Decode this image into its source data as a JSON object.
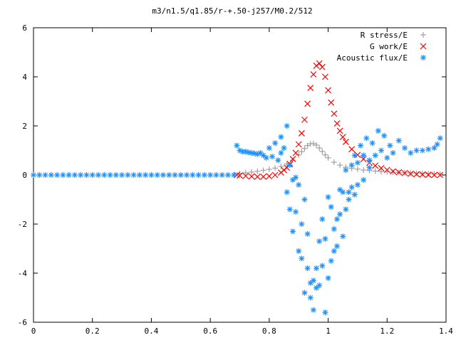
{
  "chart_data": {
    "type": "scatter",
    "title": "m3/n1.5/q1.85/r-+.50-j257/M0.2/512",
    "xlabel": "",
    "ylabel": "",
    "xlim": [
      0,
      1.4
    ],
    "ylim": [
      -6,
      6
    ],
    "x_ticks": [
      0,
      0.2,
      0.4,
      0.6,
      0.8,
      1,
      1.2,
      1.4
    ],
    "x_tick_labels": [
      "0",
      "0.2",
      "0.4",
      "0.6",
      "0.8",
      "1",
      "1.2",
      "1.4"
    ],
    "y_ticks": [
      -6,
      -4,
      -2,
      0,
      2,
      4,
      6
    ],
    "y_tick_labels": [
      "-6",
      "-4",
      "-2",
      "0",
      "2",
      "4",
      "6"
    ],
    "grid": false,
    "legend_position": "top-right",
    "series": [
      {
        "name": "R stress/E",
        "marker": "plus",
        "color": "#a0a0a0",
        "x": [
          0.7,
          0.72,
          0.74,
          0.76,
          0.78,
          0.8,
          0.82,
          0.84,
          0.86,
          0.88,
          0.9,
          0.91,
          0.92,
          0.93,
          0.94,
          0.95,
          0.96,
          0.97,
          0.98,
          0.99,
          1.0,
          1.02,
          1.04,
          1.06,
          1.08,
          1.1,
          1.12,
          1.14,
          1.16,
          1.18,
          1.2,
          1.22,
          1.24,
          1.26,
          1.28,
          1.3,
          1.32,
          1.34,
          1.36,
          1.38
        ],
        "y": [
          0.06,
          0.09,
          0.12,
          0.15,
          0.19,
          0.23,
          0.28,
          0.35,
          0.45,
          0.6,
          0.82,
          0.95,
          1.08,
          1.2,
          1.27,
          1.28,
          1.22,
          1.1,
          0.96,
          0.82,
          0.7,
          0.52,
          0.4,
          0.32,
          0.27,
          0.24,
          0.2,
          0.18,
          0.16,
          0.14,
          0.13,
          0.11,
          0.1,
          0.09,
          0.08,
          0.07,
          0.06,
          0.05,
          0.04,
          0.03
        ]
      },
      {
        "name": "G work/E",
        "marker": "cross",
        "color": "#ff0000",
        "x": [
          0.69,
          0.7,
          0.72,
          0.74,
          0.76,
          0.78,
          0.8,
          0.82,
          0.84,
          0.85,
          0.86,
          0.87,
          0.88,
          0.89,
          0.9,
          0.91,
          0.92,
          0.93,
          0.94,
          0.95,
          0.96,
          0.97,
          0.98,
          0.99,
          1.0,
          1.01,
          1.02,
          1.03,
          1.04,
          1.05,
          1.06,
          1.08,
          1.1,
          1.12,
          1.14,
          1.16,
          1.18,
          1.2,
          1.22,
          1.24,
          1.26,
          1.28,
          1.3,
          1.32,
          1.34,
          1.36,
          1.38
        ],
        "y": [
          0.0,
          -0.02,
          -0.04,
          -0.06,
          -0.07,
          -0.07,
          -0.05,
          0.0,
          0.1,
          0.2,
          0.3,
          0.45,
          0.65,
          0.9,
          1.25,
          1.7,
          2.25,
          2.9,
          3.55,
          4.1,
          4.45,
          4.55,
          4.4,
          4.0,
          3.45,
          2.95,
          2.5,
          2.1,
          1.8,
          1.55,
          1.35,
          1.05,
          0.82,
          0.65,
          0.5,
          0.38,
          0.28,
          0.21,
          0.15,
          0.11,
          0.08,
          0.05,
          0.03,
          0.02,
          0.01,
          0.0,
          0.0
        ]
      },
      {
        "name": "Acoustic flux/E",
        "marker": "star",
        "color": "#1e90ff",
        "x": [
          0.0,
          0.02,
          0.04,
          0.06,
          0.08,
          0.1,
          0.12,
          0.14,
          0.16,
          0.18,
          0.2,
          0.22,
          0.24,
          0.26,
          0.28,
          0.3,
          0.32,
          0.34,
          0.36,
          0.38,
          0.4,
          0.42,
          0.44,
          0.46,
          0.48,
          0.5,
          0.52,
          0.54,
          0.56,
          0.58,
          0.6,
          0.62,
          0.64,
          0.66,
          0.68,
          0.69,
          0.7,
          0.71,
          0.72,
          0.73,
          0.74,
          0.75,
          0.76,
          0.77,
          0.78,
          0.79,
          0.8,
          0.81,
          0.82,
          0.83,
          0.84,
          0.84,
          0.85,
          0.86,
          0.86,
          0.87,
          0.87,
          0.88,
          0.88,
          0.89,
          0.89,
          0.9,
          0.9,
          0.91,
          0.91,
          0.92,
          0.92,
          0.93,
          0.93,
          0.94,
          0.94,
          0.95,
          0.95,
          0.96,
          0.96,
          0.97,
          0.97,
          0.98,
          0.98,
          0.99,
          0.99,
          1.0,
          1.0,
          1.01,
          1.01,
          1.02,
          1.02,
          1.03,
          1.03,
          1.04,
          1.04,
          1.05,
          1.05,
          1.06,
          1.06,
          1.07,
          1.07,
          1.08,
          1.08,
          1.09,
          1.09,
          1.1,
          1.1,
          1.11,
          1.12,
          1.12,
          1.13,
          1.14,
          1.14,
          1.15,
          1.16,
          1.17,
          1.18,
          1.19,
          1.2,
          1.21,
          1.22,
          1.24,
          1.26,
          1.28,
          1.3,
          1.32,
          1.34,
          1.36,
          1.37,
          1.38
        ],
        "y": [
          0.0,
          0.0,
          0.0,
          0.0,
          0.0,
          0.0,
          0.0,
          0.0,
          0.0,
          0.0,
          0.0,
          0.0,
          0.0,
          0.0,
          0.0,
          0.0,
          0.0,
          0.0,
          0.0,
          0.0,
          0.0,
          0.0,
          0.0,
          0.0,
          0.0,
          0.0,
          0.0,
          0.0,
          0.0,
          0.0,
          0.0,
          0.0,
          0.0,
          0.0,
          0.0,
          1.2,
          1.0,
          0.95,
          0.95,
          0.92,
          0.9,
          0.88,
          0.85,
          0.9,
          0.8,
          0.7,
          1.1,
          0.75,
          1.3,
          0.6,
          0.9,
          1.55,
          1.1,
          2.0,
          -0.7,
          0.4,
          -1.4,
          -0.2,
          -2.3,
          -0.1,
          -1.5,
          -3.1,
          -0.4,
          -2.0,
          -3.4,
          -1.0,
          -4.8,
          -2.4,
          -3.8,
          -4.4,
          -5.0,
          -4.3,
          -5.5,
          -3.8,
          -4.6,
          -2.7,
          -4.5,
          -1.8,
          -3.7,
          -5.6,
          -2.6,
          -0.9,
          -4.2,
          -3.5,
          -1.3,
          -3.1,
          -2.2,
          -1.8,
          -2.9,
          -0.6,
          -1.6,
          -2.5,
          -0.7,
          -1.4,
          0.2,
          -0.7,
          -1.0,
          0.4,
          -0.5,
          -0.8,
          0.8,
          0.5,
          -0.4,
          1.2,
          0.8,
          -0.2,
          1.5,
          0.6,
          0.3,
          1.3,
          0.8,
          1.8,
          1.0,
          1.6,
          0.7,
          1.2,
          0.9,
          1.4,
          1.1,
          0.9,
          1.0,
          1.0,
          1.05,
          1.1,
          1.25,
          1.5
        ]
      }
    ]
  }
}
